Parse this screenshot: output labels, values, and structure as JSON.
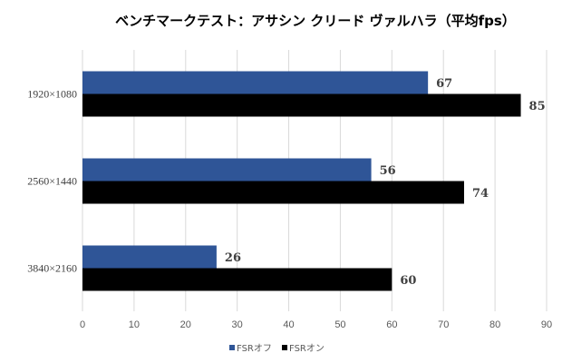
{
  "chart_data": {
    "type": "bar",
    "orientation": "horizontal",
    "title": "ベンチマークテスト：アサシン クリード ヴァルハラ（平均fps）",
    "categories": [
      "1920×1080",
      "2560×1440",
      "3840×2160"
    ],
    "series": [
      {
        "name": "FSRオフ",
        "color": "#2F5597",
        "values": [
          67,
          56,
          26
        ]
      },
      {
        "name": "FSRオン",
        "color": "#000000",
        "values": [
          85,
          74,
          60
        ]
      }
    ],
    "xlim": [
      0,
      90
    ],
    "xticks": [
      0,
      10,
      20,
      30,
      40,
      50,
      60,
      70,
      80,
      90
    ],
    "grid": true,
    "legend": "bottom",
    "xlabel": "",
    "ylabel": ""
  }
}
